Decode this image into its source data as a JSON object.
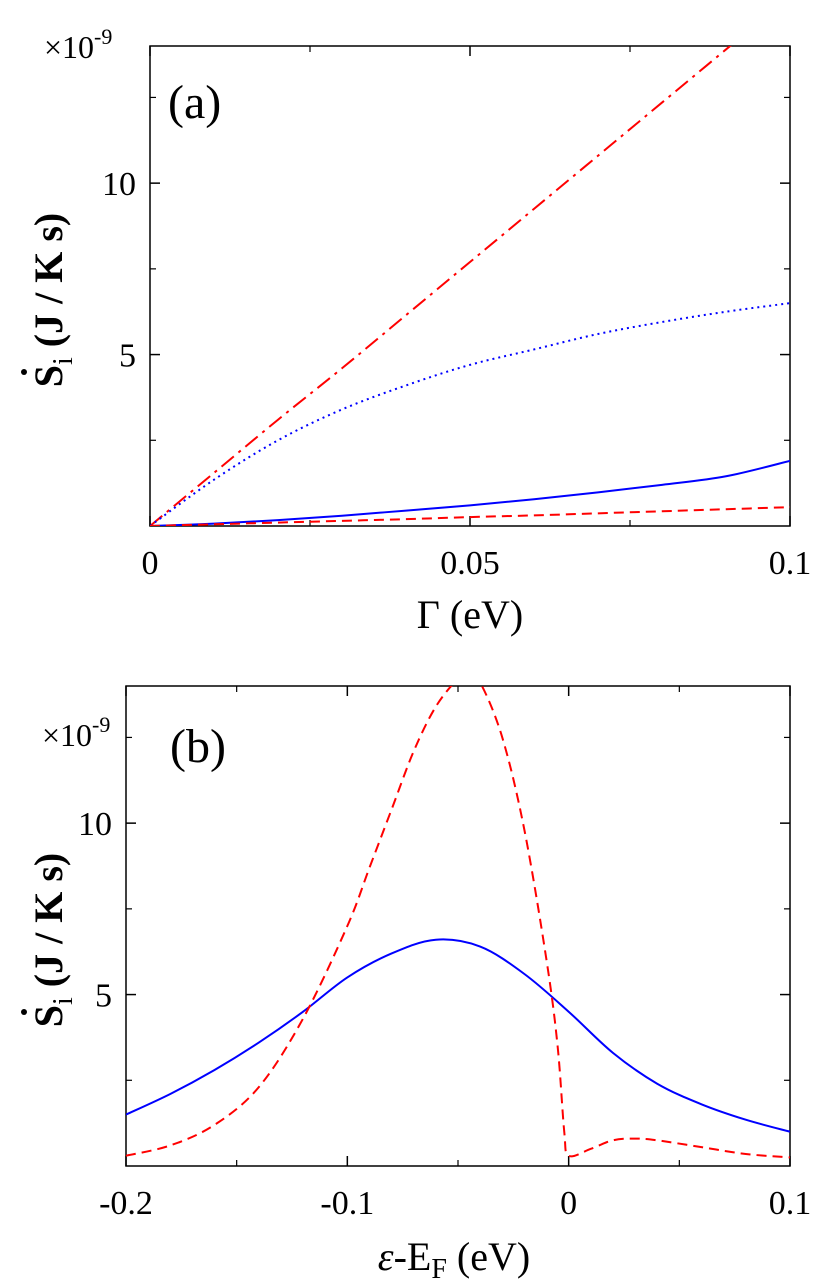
{
  "chart_data": [
    {
      "type": "line",
      "panel_label": "(a)",
      "multiplier_label": "×10",
      "multiplier_exp": "-9",
      "xlabel": "Γ  (eV)",
      "ylabel_main": "S",
      "ylabel_sub": "i",
      "ylabel_tail": " (J / K s)",
      "xlim": [
        0,
        0.1
      ],
      "ylim": [
        0,
        14
      ],
      "x_ticks": [
        0,
        0.05,
        0.1
      ],
      "x_tick_labels": [
        "0",
        "0.05",
        "0.1"
      ],
      "y_ticks": [
        5,
        10
      ],
      "y_tick_labels": [
        "5",
        "10"
      ],
      "x": [
        0,
        0.01,
        0.02,
        0.03,
        0.04,
        0.05,
        0.06,
        0.07,
        0.08,
        0.09,
        0.1
      ],
      "series": [
        {
          "color": "#ff0000",
          "dash": "dashdot",
          "values": [
            0,
            1.55,
            3.1,
            4.6,
            6.15,
            7.7,
            9.25,
            10.8,
            12.35,
            13.9,
            15.45
          ]
        },
        {
          "color": "#0000ff",
          "dash": "dotted",
          "values": [
            0,
            1.35,
            2.5,
            3.4,
            4.1,
            4.7,
            5.15,
            5.6,
            5.95,
            6.25,
            6.5
          ]
        },
        {
          "color": "#0000ff",
          "dash": "solid",
          "values": [
            0,
            0.07,
            0.17,
            0.3,
            0.45,
            0.6,
            0.78,
            0.98,
            1.2,
            1.45,
            1.9
          ]
        },
        {
          "color": "#ff0000",
          "dash": "dashed",
          "values": [
            0,
            0.05,
            0.1,
            0.15,
            0.2,
            0.26,
            0.31,
            0.37,
            0.43,
            0.49,
            0.55
          ]
        }
      ]
    },
    {
      "type": "line",
      "panel_label": "(b)",
      "multiplier_label": "×10",
      "multiplier_exp": "-9",
      "xlabel_eps": "ε",
      "xlabel_mid": "-E",
      "xlabel_sub": "F",
      "xlabel_tail": " (eV)",
      "ylabel_main": "S",
      "ylabel_sub": "i",
      "ylabel_tail": " (J / K s)",
      "xlim": [
        -0.2,
        0.1
      ],
      "ylim": [
        0,
        14
      ],
      "x_ticks": [
        -0.2,
        -0.1,
        0,
        0.1
      ],
      "x_tick_labels": [
        "-0.2",
        "-0.1",
        "0",
        "0.1"
      ],
      "y_ticks": [
        5,
        10
      ],
      "y_tick_labels": [
        "5",
        "10"
      ],
      "series": [
        {
          "color": "#0000ff",
          "dash": "solid",
          "x": [
            -0.2,
            -0.18,
            -0.16,
            -0.14,
            -0.12,
            -0.1,
            -0.08,
            -0.06,
            -0.04,
            -0.02,
            0,
            0.02,
            0.04,
            0.06,
            0.08,
            0.1
          ],
          "values": [
            1.5,
            2.1,
            2.8,
            3.6,
            4.5,
            5.5,
            6.2,
            6.6,
            6.4,
            5.6,
            4.5,
            3.3,
            2.4,
            1.8,
            1.35,
            1.0
          ]
        },
        {
          "color": "#ff0000",
          "dash": "dashed",
          "x": [
            -0.2,
            -0.18,
            -0.16,
            -0.14,
            -0.12,
            -0.1,
            -0.09,
            -0.08,
            -0.07,
            -0.06,
            -0.05,
            -0.045,
            -0.04,
            -0.03,
            -0.02,
            -0.01,
            -0.005,
            -0.002,
            0,
            0.01,
            0.02,
            0.03,
            0.04,
            0.06,
            0.08,
            0.1
          ],
          "values": [
            0.3,
            0.6,
            1.2,
            2.3,
            4.3,
            7.0,
            8.7,
            10.4,
            12.1,
            13.4,
            14.2,
            14.25,
            14.1,
            12.5,
            9.8,
            6.0,
            3.5,
            1.0,
            0.3,
            0.5,
            0.75,
            0.8,
            0.75,
            0.55,
            0.35,
            0.25
          ]
        }
      ]
    }
  ]
}
